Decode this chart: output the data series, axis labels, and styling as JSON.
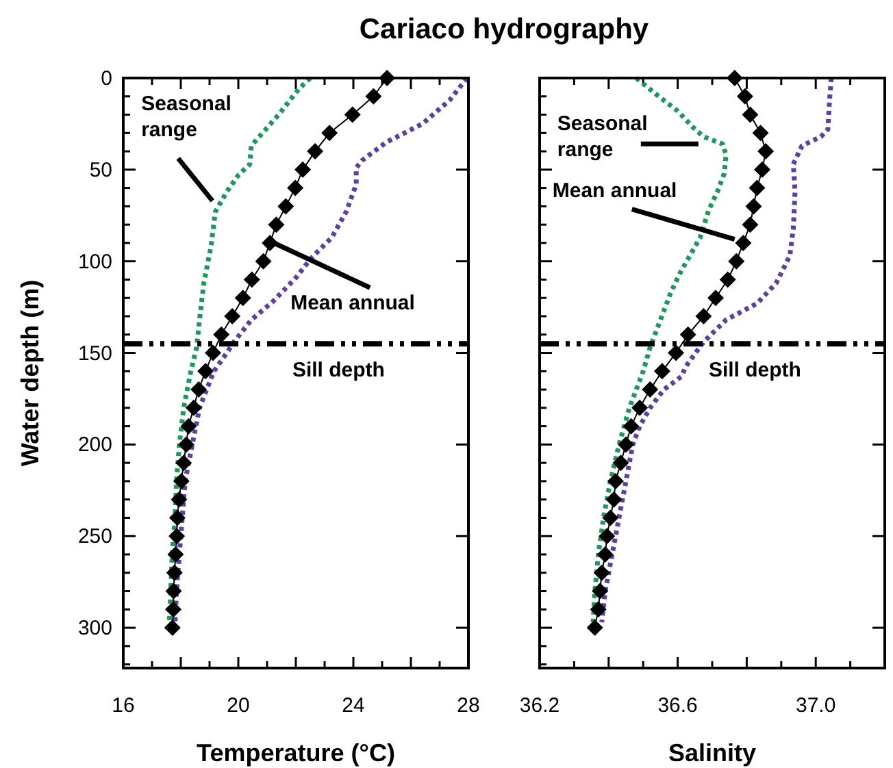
{
  "chart_data": [
    {
      "type": "line",
      "title": "Cariaco hydrography",
      "xlabel": "Temperature (°C)",
      "ylabel": "Water depth (m)",
      "xlim": [
        16,
        28
      ],
      "xticks": [
        16,
        {
          "value": 17,
          "label": null
        },
        {
          "value": 18,
          "label": null
        },
        {
          "value": 19,
          "label": null
        },
        20,
        {
          "value": 21,
          "label": null
        },
        {
          "value": 22,
          "label": null
        },
        {
          "value": 23,
          "label": null
        },
        24,
        {
          "value": 25,
          "label": null
        },
        {
          "value": 26,
          "label": null
        },
        {
          "value": 27,
          "label": null
        },
        28
      ],
      "ylim": [
        322,
        0
      ],
      "yticks": [
        0,
        {
          "value": 10,
          "label": null
        },
        {
          "value": 20,
          "label": null
        },
        {
          "value": 30,
          "label": null
        },
        {
          "value": 40,
          "label": null
        },
        50,
        {
          "value": 60,
          "label": null
        },
        {
          "value": 70,
          "label": null
        },
        {
          "value": 80,
          "label": null
        },
        {
          "value": 90,
          "label": null
        },
        100,
        {
          "value": 110,
          "label": null
        },
        {
          "value": 120,
          "label": null
        },
        {
          "value": 130,
          "label": null
        },
        {
          "value": 140,
          "label": null
        },
        150,
        {
          "value": 160,
          "label": null
        },
        {
          "value": 170,
          "label": null
        },
        {
          "value": 180,
          "label": null
        },
        {
          "value": 190,
          "label": null
        },
        200,
        {
          "value": 210,
          "label": null
        },
        {
          "value": 220,
          "label": null
        },
        {
          "value": 230,
          "label": null
        },
        {
          "value": 240,
          "label": null
        },
        250,
        {
          "value": 260,
          "label": null
        },
        {
          "value": 270,
          "label": null
        },
        {
          "value": 280,
          "label": null
        },
        {
          "value": 290,
          "label": null
        },
        300,
        {
          "value": 310,
          "label": null
        },
        {
          "value": 320,
          "label": null
        }
      ],
      "grid": false,
      "ref_lines": [
        {
          "axis": "y",
          "value": 145,
          "label": "Sill depth",
          "color": "#000000",
          "line_style": "dashed"
        }
      ],
      "annotations": [
        {
          "text": "Seasonal range",
          "x": 19.1,
          "y": 67
        },
        {
          "text": "Mean annual",
          "x": 21.1,
          "y": 89
        }
      ],
      "series": [
        {
          "color": "#1a9a5a",
          "line_style": "dotted",
          "marker": "none",
          "x": [
            22.5,
            22.1,
            21.8,
            21.4,
            20.45,
            20.4,
            20.0,
            19.6,
            19.2,
            19.05,
            18.8,
            18.65,
            18.55,
            18.35,
            18.1,
            17.95,
            17.85,
            17.8,
            17.7,
            17.65,
            17.6
          ],
          "values": [
            0,
            6,
            12,
            20,
            37,
            47,
            53,
            62,
            73,
            92,
            112,
            132,
            147,
            160,
            180,
            200,
            220,
            240,
            260,
            280,
            298
          ]
        },
        {
          "color": "#5b3fa8",
          "line_style": "dotted",
          "marker": "none",
          "x": [
            27.95,
            27.35,
            26.4,
            25.15,
            24.3,
            24.1,
            24.1,
            23.75,
            23.25,
            22.55,
            22.0,
            21.2,
            20.45,
            19.85,
            19.6,
            19.15,
            18.65,
            18.4,
            18.15,
            18.05,
            17.95,
            17.85,
            17.8
          ],
          "values": [
            0,
            12,
            25,
            35,
            45,
            49,
            58,
            73,
            87,
            98,
            109,
            122,
            132,
            144,
            150,
            160,
            180,
            200,
            220,
            240,
            260,
            280,
            297
          ]
        },
        {
          "color": "#000000",
          "line_style": "solid",
          "marker": "diamond",
          "x": [
            25.17,
            24.7,
            23.97,
            23.17,
            22.67,
            22.24,
            21.98,
            21.65,
            21.32,
            21.1,
            20.87,
            20.47,
            20.16,
            19.79,
            19.41,
            19.12,
            18.86,
            18.62,
            18.45,
            18.27,
            18.19,
            18.1,
            18.02,
            17.94,
            17.88,
            17.86,
            17.82,
            17.78,
            17.75,
            17.74,
            17.71
          ],
          "values": [
            0,
            10,
            20,
            30,
            40,
            50,
            60,
            70,
            80,
            90,
            100,
            110,
            120,
            130,
            140,
            150,
            160,
            170,
            180,
            190,
            200,
            210,
            220,
            230,
            240,
            250,
            260,
            270,
            280,
            290,
            300
          ]
        }
      ]
    },
    {
      "type": "line",
      "xlabel": "Salinity",
      "xlim": [
        36.2,
        37.2
      ],
      "xticks": [
        36.2,
        {
          "value": 36.3,
          "label": null
        },
        {
          "value": 36.4,
          "label": null
        },
        {
          "value": 36.5,
          "label": null
        },
        36.6,
        {
          "value": 36.7,
          "label": null
        },
        {
          "value": 36.8,
          "label": null
        },
        {
          "value": 36.9,
          "label": null
        },
        {
          "value": 37.0,
          "label": "37.0"
        },
        {
          "value": 37.1,
          "label": null
        },
        {
          "value": 37.2,
          "label": null
        }
      ],
      "ylim": [
        322,
        0
      ],
      "yticks": [
        0,
        {
          "value": 10,
          "label": null
        },
        {
          "value": 20,
          "label": null
        },
        {
          "value": 30,
          "label": null
        },
        {
          "value": 40,
          "label": null
        },
        50,
        {
          "value": 60,
          "label": null
        },
        {
          "value": 70,
          "label": null
        },
        {
          "value": 80,
          "label": null
        },
        {
          "value": 90,
          "label": null
        },
        100,
        {
          "value": 110,
          "label": null
        },
        {
          "value": 120,
          "label": null
        },
        {
          "value": 130,
          "label": null
        },
        {
          "value": 140,
          "label": null
        },
        150,
        {
          "value": 160,
          "label": null
        },
        {
          "value": 170,
          "label": null
        },
        {
          "value": 180,
          "label": null
        },
        {
          "value": 190,
          "label": null
        },
        200,
        {
          "value": 210,
          "label": null
        },
        {
          "value": 220,
          "label": null
        },
        {
          "value": 230,
          "label": null
        },
        {
          "value": 240,
          "label": null
        },
        250,
        {
          "value": 260,
          "label": null
        },
        {
          "value": 270,
          "label": null
        },
        {
          "value": 280,
          "label": null
        },
        {
          "value": 290,
          "label": null
        },
        300,
        {
          "value": 310,
          "label": null
        },
        {
          "value": 320,
          "label": null
        }
      ],
      "tick_labels": "x",
      "grid": false,
      "ref_lines": [
        {
          "axis": "y",
          "value": 145,
          "label": "Sill depth",
          "color": "#000000",
          "line_style": "dashed"
        }
      ],
      "annotations": [
        {
          "text": "Seasonal range",
          "x": 36.66,
          "y": 36
        },
        {
          "text": "Mean annual",
          "x": 36.765,
          "y": 88
        }
      ],
      "series": [
        {
          "color": "#1a9a5a",
          "line_style": "dotted",
          "marker": "none",
          "x": [
            36.48,
            36.545,
            36.6,
            36.645,
            36.675,
            36.73,
            36.74,
            36.735,
            36.715,
            36.69,
            36.665,
            36.635,
            36.605,
            36.58,
            36.56,
            36.54,
            36.52,
            36.5,
            36.46,
            36.43,
            36.405,
            36.385,
            36.37,
            36.36,
            36.355
          ],
          "values": [
            0,
            10,
            18,
            27,
            32,
            36,
            42,
            52,
            62,
            72,
            87,
            97,
            107,
            117,
            127,
            137,
            147,
            160,
            180,
            200,
            220,
            240,
            260,
            280,
            297
          ]
        },
        {
          "color": "#5b3fa8",
          "line_style": "dotted",
          "marker": "none",
          "x": [
            37.045,
            37.04,
            37.035,
            37.015,
            36.96,
            36.935,
            36.94,
            36.935,
            36.925,
            36.885,
            36.83,
            36.74,
            36.675,
            36.625,
            36.61,
            36.56,
            36.52,
            36.49,
            36.47,
            36.45,
            36.43,
            36.41,
            36.39,
            36.38
          ],
          "values": [
            0,
            12,
            28,
            32,
            37,
            47,
            62,
            82,
            97,
            112,
            123,
            132,
            144,
            157,
            163,
            170,
            180,
            190,
            200,
            220,
            240,
            260,
            280,
            297
          ]
        },
        {
          "color": "#000000",
          "line_style": "solid",
          "marker": "diamond",
          "x": [
            36.765,
            36.795,
            36.81,
            36.84,
            36.855,
            36.845,
            36.83,
            36.82,
            36.81,
            36.79,
            36.77,
            36.745,
            36.71,
            36.675,
            36.63,
            36.595,
            36.555,
            36.52,
            36.49,
            36.465,
            36.45,
            36.435,
            36.42,
            36.415,
            36.405,
            36.395,
            36.39,
            36.38,
            36.375,
            36.37,
            36.36
          ],
          "values": [
            0,
            10,
            20,
            30,
            40,
            50,
            60,
            70,
            80,
            90,
            100,
            110,
            120,
            130,
            140,
            150,
            160,
            170,
            180,
            190,
            200,
            210,
            220,
            230,
            240,
            250,
            260,
            270,
            280,
            290,
            300
          ]
        }
      ]
    }
  ]
}
